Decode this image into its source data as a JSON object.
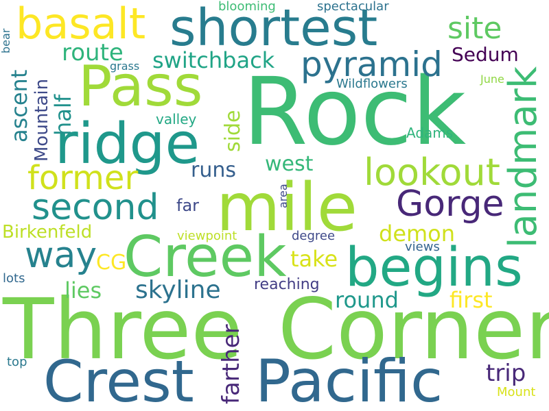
{
  "word_cloud": {
    "words": [
      {
        "text": "Rock",
        "color": "#3dbc74"
      },
      {
        "text": "Three",
        "color": "#7ad151"
      },
      {
        "text": "Corner",
        "color": "#7ad151"
      },
      {
        "text": "Pacific",
        "color": "#31688e"
      },
      {
        "text": "Crest",
        "color": "#31688e"
      },
      {
        "text": "Creek",
        "color": "#5ec962"
      },
      {
        "text": "mile",
        "color": "#a0da39"
      },
      {
        "text": "shortest",
        "color": "#287c8e"
      },
      {
        "text": "Pass",
        "color": "#a0da39"
      },
      {
        "text": "ridge",
        "color": "#1f988b"
      },
      {
        "text": "basalt",
        "color": "#fde725"
      },
      {
        "text": "begins",
        "color": "#22a884"
      },
      {
        "text": "landmark",
        "color": "#3dbc74"
      },
      {
        "text": "pyramid",
        "color": "#2c728e"
      },
      {
        "text": "second",
        "color": "#21918c"
      },
      {
        "text": "former",
        "color": "#d0e11c"
      },
      {
        "text": "lookout",
        "color": "#a0da39"
      },
      {
        "text": "Gorge",
        "color": "#482878"
      },
      {
        "text": "way",
        "color": "#26828e"
      },
      {
        "text": "site",
        "color": "#5ec962"
      },
      {
        "text": "switchback",
        "color": "#20a486"
      },
      {
        "text": "route",
        "color": "#2fb47c"
      },
      {
        "text": "skyline",
        "color": "#2c728e"
      },
      {
        "text": "round",
        "color": "#1f988b"
      },
      {
        "text": "demon",
        "color": "#d0e11c"
      },
      {
        "text": "farther",
        "color": "#482878"
      },
      {
        "text": "first",
        "color": "#fde725"
      },
      {
        "text": "trip",
        "color": "#482878"
      },
      {
        "text": "take",
        "color": "#d8e219"
      },
      {
        "text": "lies",
        "color": "#5ec962"
      },
      {
        "text": "west",
        "color": "#35b779"
      },
      {
        "text": "runs",
        "color": "#355f8d"
      },
      {
        "text": "ascent",
        "color": "#26828e"
      },
      {
        "text": "half",
        "color": "#21918c"
      },
      {
        "text": "Mountain",
        "color": "#3e4a89"
      },
      {
        "text": "Sedum",
        "color": "#440154"
      },
      {
        "text": "side",
        "color": "#a0da39"
      },
      {
        "text": "CG",
        "color": "#fde725"
      },
      {
        "text": "far",
        "color": "#3e4989"
      },
      {
        "text": "Birkenfeld",
        "color": "#bddf26"
      },
      {
        "text": "reaching",
        "color": "#433e85"
      },
      {
        "text": "Wildflowers",
        "color": "#2a788e"
      },
      {
        "text": "valley",
        "color": "#22a884"
      },
      {
        "text": "Adams",
        "color": "#2fb47c"
      },
      {
        "text": "viewpoint",
        "color": "#bddf26"
      },
      {
        "text": "degree",
        "color": "#3e4989"
      },
      {
        "text": "views",
        "color": "#33638d"
      },
      {
        "text": "area",
        "color": "#3e4989"
      },
      {
        "text": "lots",
        "color": "#31688e"
      },
      {
        "text": "top",
        "color": "#2a788e"
      },
      {
        "text": "Mount",
        "color": "#d8e219"
      },
      {
        "text": "June",
        "color": "#90d743"
      },
      {
        "text": "grass",
        "color": "#2a788e"
      },
      {
        "text": "blooming",
        "color": "#3dbc74"
      },
      {
        "text": "spectacular",
        "color": "#2c728e"
      },
      {
        "text": "bear",
        "color": "#2c728e"
      }
    ]
  }
}
